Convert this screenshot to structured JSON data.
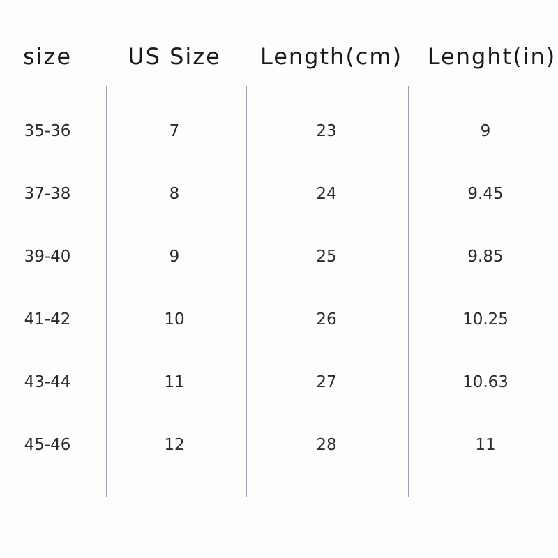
{
  "table": {
    "headers": [
      "size",
      "US Size",
      "Length(cm)",
      "Lenght(in)"
    ],
    "rows": [
      [
        "35-36",
        "7",
        "23",
        "9"
      ],
      [
        "37-38",
        "8",
        "24",
        "9.45"
      ],
      [
        "39-40",
        "9",
        "25",
        "9.85"
      ],
      [
        "41-42",
        "10",
        "26",
        "10.25"
      ],
      [
        "43-44",
        "11",
        "27",
        "10.63"
      ],
      [
        "45-46",
        "12",
        "28",
        "11"
      ]
    ]
  }
}
